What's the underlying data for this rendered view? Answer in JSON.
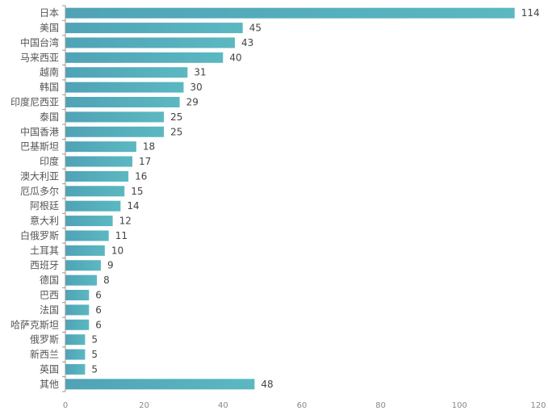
{
  "chart_data": {
    "type": "bar",
    "orientation": "horizontal",
    "categories": [
      "日本",
      "美国",
      "中国台湾",
      "马来西亚",
      "越南",
      "韩国",
      "印度尼西亚",
      "泰国",
      "中国香港",
      "巴基斯坦",
      "印度",
      "澳大利亚",
      "厄瓜多尔",
      "阿根廷",
      "意大利",
      "白俄罗斯",
      "土耳其",
      "西班牙",
      "德国",
      "巴西",
      "法国",
      "哈萨克斯坦",
      "俄罗斯",
      "新西兰",
      "英国",
      "其他"
    ],
    "values": [
      114,
      45,
      43,
      40,
      31,
      30,
      29,
      25,
      25,
      18,
      17,
      16,
      15,
      14,
      12,
      11,
      10,
      9,
      8,
      6,
      6,
      6,
      5,
      5,
      5,
      48
    ],
    "xlim": [
      0,
      120
    ],
    "xticks": [
      0,
      20,
      40,
      60,
      80,
      100,
      120
    ],
    "grid": false,
    "bar_color": "#5bb8c1",
    "bar_color_dark": "#4fa3b6"
  }
}
